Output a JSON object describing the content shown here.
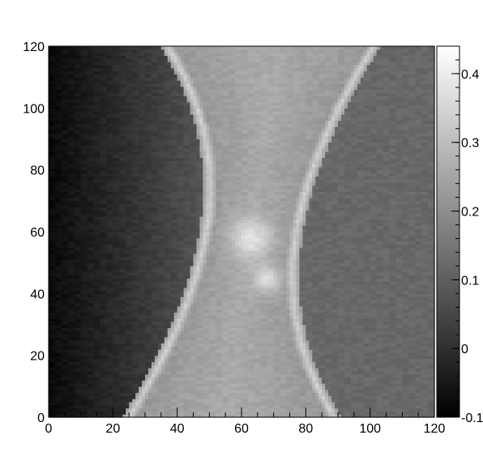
{
  "chart_data": {
    "type": "heatmap",
    "title": "",
    "xlabel": "",
    "ylabel": "",
    "xlim": [
      0,
      120
    ],
    "ylim": [
      0,
      120
    ],
    "x_ticks": [
      "0",
      "20",
      "40",
      "60",
      "80",
      "100",
      "120"
    ],
    "y_ticks": [
      "0",
      "20",
      "40",
      "60",
      "80",
      "100",
      "120"
    ],
    "colorbar": {
      "range": [
        -0.1,
        0.44
      ],
      "ticks": [
        "-0.1",
        "0",
        "0.1",
        "0.2",
        "0.3",
        "0.4"
      ],
      "colormap": "grayscale"
    },
    "grid": false,
    "legend": "none",
    "pixel_grid": {
      "cols": 120,
      "rows": 120,
      "description_of_features": {
        "background_left": -0.08,
        "background_right": 0.12,
        "central_band_value": 0.26,
        "central_peak_value": 0.38,
        "central_peak_xy": [
          63,
          58
        ],
        "secondary_peak_xy": [
          68,
          45
        ],
        "edge_line_value": 0.34
      }
    }
  }
}
